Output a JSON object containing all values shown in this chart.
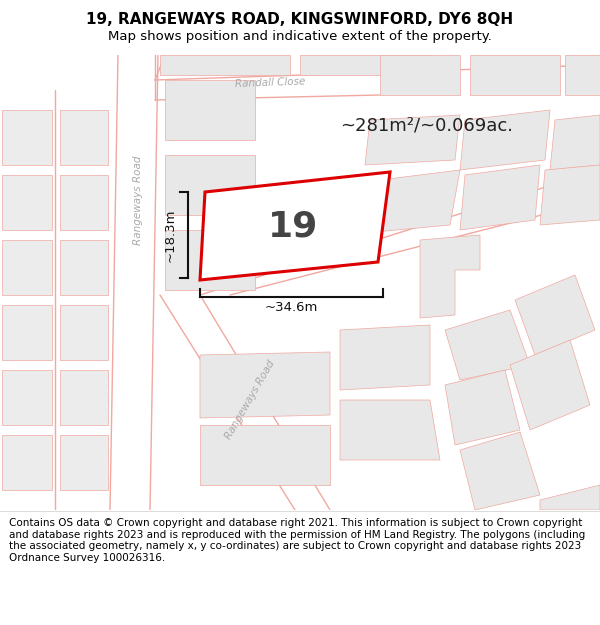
{
  "title_line1": "19, RANGEWAYS ROAD, KINGSWINFORD, DY6 8QH",
  "title_line2": "Map shows position and indicative extent of the property.",
  "area_text": "~281m²/~0.069ac.",
  "label_number": "19",
  "dim_width": "~34.6m",
  "dim_height": "~18.3m",
  "footer_text": "Contains OS data © Crown copyright and database right 2021. This information is subject to Crown copyright and database rights 2023 and is reproduced with the permission of HM Land Registry. The polygons (including the associated geometry, namely x, y co-ordinates) are subject to Crown copyright and database rights 2023 Ordnance Survey 100026316.",
  "map_bg": "#ffffff",
  "road_line_color": "#f0a8a0",
  "plot_border": "#dd0000",
  "building_fill": "#e8e8e8",
  "building_edge": "#c8c8c8",
  "title_fontsize": 11,
  "subtitle_fontsize": 9.5,
  "footer_fontsize": 7.5,
  "road_label_color": "#aaaaaa",
  "annotation_color": "#111111",
  "area_color": "#222222"
}
